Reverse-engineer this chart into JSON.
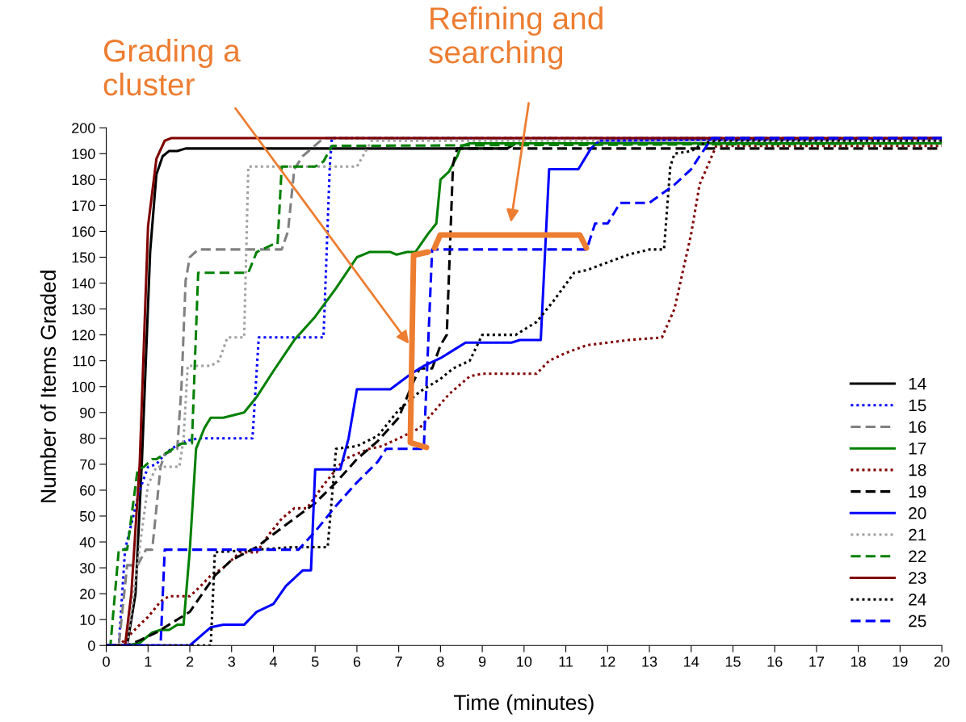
{
  "chart_data": {
    "type": "line",
    "xlabel": "Time (minutes)",
    "ylabel": "Number of Items Graded",
    "xlim": [
      0,
      20
    ],
    "xticks": [
      0,
      1,
      2,
      3,
      4,
      5,
      6,
      7,
      8,
      9,
      10,
      11,
      12,
      13,
      14,
      15,
      16,
      17,
      18,
      19,
      20
    ],
    "ylim": [
      0,
      200
    ],
    "yticks": [
      0,
      10,
      20,
      30,
      40,
      50,
      60,
      70,
      80,
      90,
      100,
      110,
      120,
      130,
      140,
      150,
      160,
      170,
      180,
      190,
      200
    ],
    "grid": false,
    "legend": "bottom right",
    "marker": "none",
    "annotations": [
      "Grading a\ncluster",
      "Refining and\nsearching"
    ],
    "series": [
      {
        "name": "14",
        "color": "#000000",
        "line_style": "solid",
        "x": [
          0,
          0.5,
          0.7,
          0.85,
          1.05,
          1.2,
          1.35,
          1.5,
          1.7,
          1.9,
          9.6,
          9.8,
          20
        ],
        "values": [
          0,
          0,
          20,
          70,
          152,
          182,
          189,
          191,
          191,
          192,
          192,
          194,
          194
        ]
      },
      {
        "name": "15",
        "color": "#0000ff",
        "line_style": "dotted",
        "x": [
          0,
          0.3,
          0.45,
          0.8,
          1.0,
          1.2,
          1.3,
          1.55,
          1.9,
          2.2,
          3.5,
          3.65,
          5.2,
          5.35,
          5.4,
          20
        ],
        "values": [
          0,
          0,
          37,
          60,
          69,
          70,
          72,
          76,
          79,
          80,
          80,
          119,
          119,
          185,
          196,
          196
        ]
      },
      {
        "name": "16",
        "color": "#808080",
        "line_style": "dashed",
        "x": [
          0,
          0.3,
          0.5,
          0.75,
          0.95,
          1.1,
          1.3,
          1.4,
          1.7,
          1.8,
          1.9,
          2.0,
          2.2,
          4.2,
          4.35,
          4.5,
          4.7,
          5.2,
          20
        ],
        "values": [
          0,
          0,
          31,
          31,
          37,
          37,
          69,
          74,
          76,
          100,
          141,
          150,
          153,
          153,
          160,
          184,
          189,
          196,
          196
        ]
      },
      {
        "name": "17",
        "color": "#008000",
        "line_style": "solid",
        "x": [
          0,
          0.5,
          0.8,
          1.1,
          1.3,
          1.5,
          1.7,
          1.85,
          2.0,
          2.15,
          2.35,
          2.5,
          2.8,
          3.3,
          3.6,
          4.0,
          4.5,
          5.0,
          5.5,
          6.0,
          6.3,
          6.8,
          6.95,
          7.2,
          7.4,
          7.7,
          7.9,
          8.0,
          8.2,
          8.4,
          8.5,
          8.7,
          20
        ],
        "values": [
          0,
          0,
          1,
          5,
          6,
          6,
          8,
          8,
          37,
          76,
          84,
          88,
          88,
          90,
          96,
          106,
          118,
          127,
          138,
          150,
          152,
          152,
          151,
          152,
          152,
          159,
          163,
          180,
          183,
          189,
          193,
          194,
          194
        ]
      },
      {
        "name": "18",
        "color": "#800000",
        "line_style": "dotted",
        "x": [
          0,
          0.3,
          0.5,
          0.8,
          1.0,
          1.3,
          1.5,
          2.0,
          2.2,
          2.5,
          2.8,
          3.2,
          3.6,
          3.9,
          4.2,
          4.5,
          4.8,
          5.2,
          5.7,
          6.3,
          6.6,
          7.0,
          7.5,
          8.2,
          8.7,
          9.0,
          10.3,
          10.6,
          11.0,
          11.5,
          12.0,
          12.5,
          13.3,
          13.6,
          14.0,
          14.2,
          14.6,
          20
        ],
        "values": [
          0,
          0,
          3,
          8,
          11,
          17,
          19,
          19,
          22,
          27,
          30,
          36,
          36,
          43,
          49,
          53,
          53,
          62,
          72,
          76,
          77,
          80,
          84,
          97,
          104,
          105,
          105,
          110,
          113,
          116,
          117,
          118,
          119,
          130,
          159,
          178,
          193,
          193
        ]
      },
      {
        "name": "19",
        "color": "#000000",
        "line_style": "dashed",
        "x": [
          0,
          0.5,
          0.8,
          1.2,
          1.5,
          1.8,
          2.0,
          2.3,
          2.6,
          3.0,
          3.6,
          4.0,
          4.5,
          5.0,
          5.5,
          6.0,
          6.5,
          7.0,
          7.3,
          7.5,
          7.8,
          8.0,
          8.15,
          8.3,
          8.4,
          20
        ],
        "values": [
          0,
          0,
          2,
          5,
          8,
          11,
          13,
          20,
          27,
          33,
          38,
          43,
          49,
          55,
          63,
          72,
          79,
          88,
          100,
          107,
          107,
          116,
          120,
          186,
          192,
          192
        ]
      },
      {
        "name": "20",
        "color": "#0000ff",
        "line_style": "solid",
        "x": [
          0,
          1.5,
          2.0,
          2.5,
          2.8,
          3.3,
          3.6,
          4.0,
          4.3,
          4.7,
          4.9,
          5.0,
          5.6,
          5.8,
          6.0,
          6.8,
          7.3,
          7.6,
          8.0,
          8.3,
          8.6,
          9.7,
          9.9,
          10.4,
          10.6,
          11.3,
          11.6,
          11.8,
          20
        ],
        "values": [
          0,
          0,
          0,
          7,
          8,
          8,
          13,
          16,
          23,
          29,
          29,
          68,
          68,
          80,
          99,
          99,
          105,
          108,
          111,
          114,
          117,
          117,
          118,
          118,
          184,
          184,
          192,
          195,
          196
        ]
      },
      {
        "name": "21",
        "color": "#a0a0a0",
        "line_style": "dotted",
        "x": [
          0,
          0.5,
          0.8,
          1.0,
          1.2,
          1.75,
          1.85,
          1.95,
          2.5,
          2.7,
          2.9,
          3.3,
          3.4,
          6.0,
          6.35,
          20
        ],
        "values": [
          0,
          0,
          38,
          62,
          69,
          69,
          80,
          108,
          108,
          110,
          119,
          119,
          185,
          185,
          195,
          195
        ]
      },
      {
        "name": "22",
        "color": "#008000",
        "line_style": "dashed",
        "x": [
          0,
          0.1,
          0.3,
          0.5,
          0.75,
          0.9,
          1.1,
          1.2,
          1.5,
          1.8,
          2.05,
          2.2,
          3.4,
          3.6,
          4.0,
          4.1,
          4.2,
          5.0,
          5.2,
          5.4,
          20
        ],
        "values": [
          0,
          0,
          37,
          37,
          68,
          69,
          72,
          72,
          75,
          78,
          78,
          144,
          144,
          152,
          155,
          155,
          185,
          185,
          187,
          193,
          194
        ]
      },
      {
        "name": "23",
        "color": "#800000",
        "line_style": "solid",
        "x": [
          0,
          0.45,
          0.6,
          0.8,
          1.0,
          1.2,
          1.4,
          1.55,
          20
        ],
        "values": [
          0,
          0,
          20,
          70,
          162,
          188,
          195,
          196,
          196
        ]
      },
      {
        "name": "24",
        "color": "#000000",
        "line_style": "dotted",
        "x": [
          0,
          2.5,
          2.6,
          4.5,
          5.3,
          5.5,
          6.0,
          6.5,
          7.0,
          7.5,
          8.0,
          8.3,
          8.7,
          9.0,
          9.8,
          10.3,
          10.7,
          11.2,
          11.5,
          12.0,
          12.5,
          13.0,
          13.35,
          13.5,
          13.6,
          14.0,
          14.3,
          14.6,
          20
        ],
        "values": [
          0,
          0,
          36,
          38,
          38,
          76,
          77,
          81,
          91,
          98,
          103,
          107,
          110,
          120,
          120,
          125,
          133,
          144,
          145,
          148,
          151,
          153,
          153,
          185,
          190,
          191,
          194,
          195,
          195
        ]
      },
      {
        "name": "25",
        "color": "#0000ff",
        "line_style": "dashed",
        "x": [
          0,
          1.3,
          1.4,
          4.6,
          5.0,
          5.5,
          6.0,
          6.5,
          6.7,
          7.6,
          7.8,
          11.5,
          11.7,
          12.0,
          12.3,
          13.0,
          13.6,
          14.0,
          14.2,
          14.5,
          20
        ],
        "values": [
          0,
          0,
          37,
          37,
          44,
          54,
          63,
          71,
          76,
          76,
          153,
          153,
          163,
          163,
          171,
          171,
          178,
          184,
          189,
          196,
          196
        ]
      }
    ]
  }
}
